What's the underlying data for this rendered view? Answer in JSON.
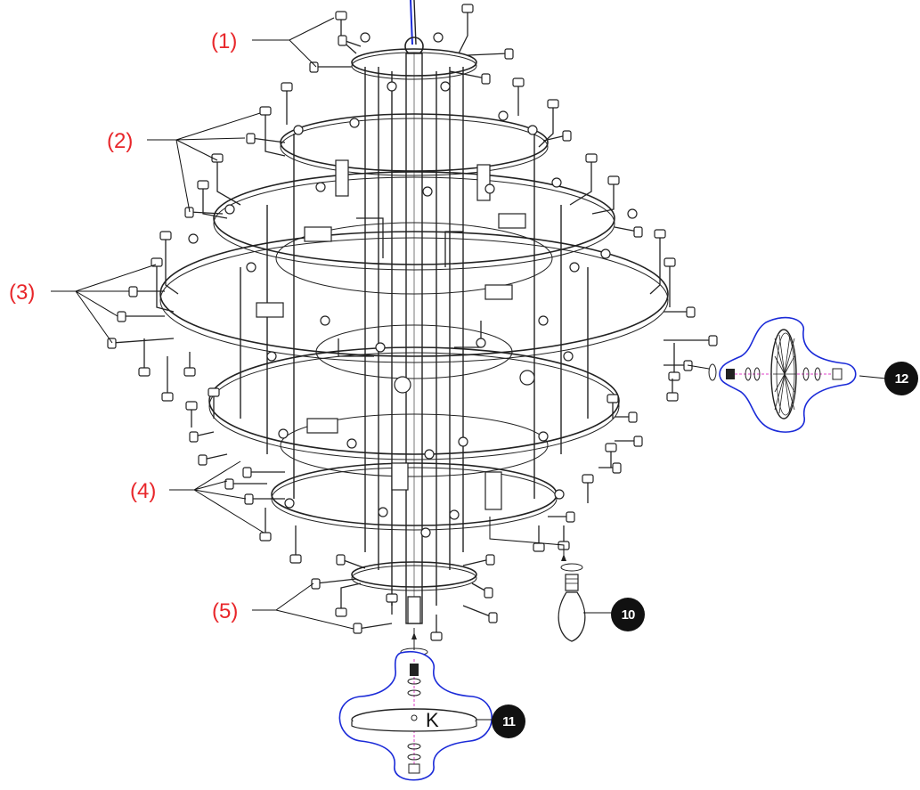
{
  "tiers": [
    {
      "id": "tier-1",
      "label": "(1)"
    },
    {
      "id": "tier-2",
      "label": "(2)"
    },
    {
      "id": "tier-3",
      "label": "(3)"
    },
    {
      "id": "tier-4",
      "label": "(4)"
    },
    {
      "id": "tier-5",
      "label": "(5)"
    }
  ],
  "steps": {
    "bulb": "10",
    "bottom_cap": "11",
    "side_detail": "12"
  },
  "parts": {
    "bottom_plate_label": "K"
  },
  "colors": {
    "tier_label": "#e8262a",
    "detail_outline": "#1b2bd8",
    "axis_line": "#e040c8",
    "badge": "#111111"
  }
}
